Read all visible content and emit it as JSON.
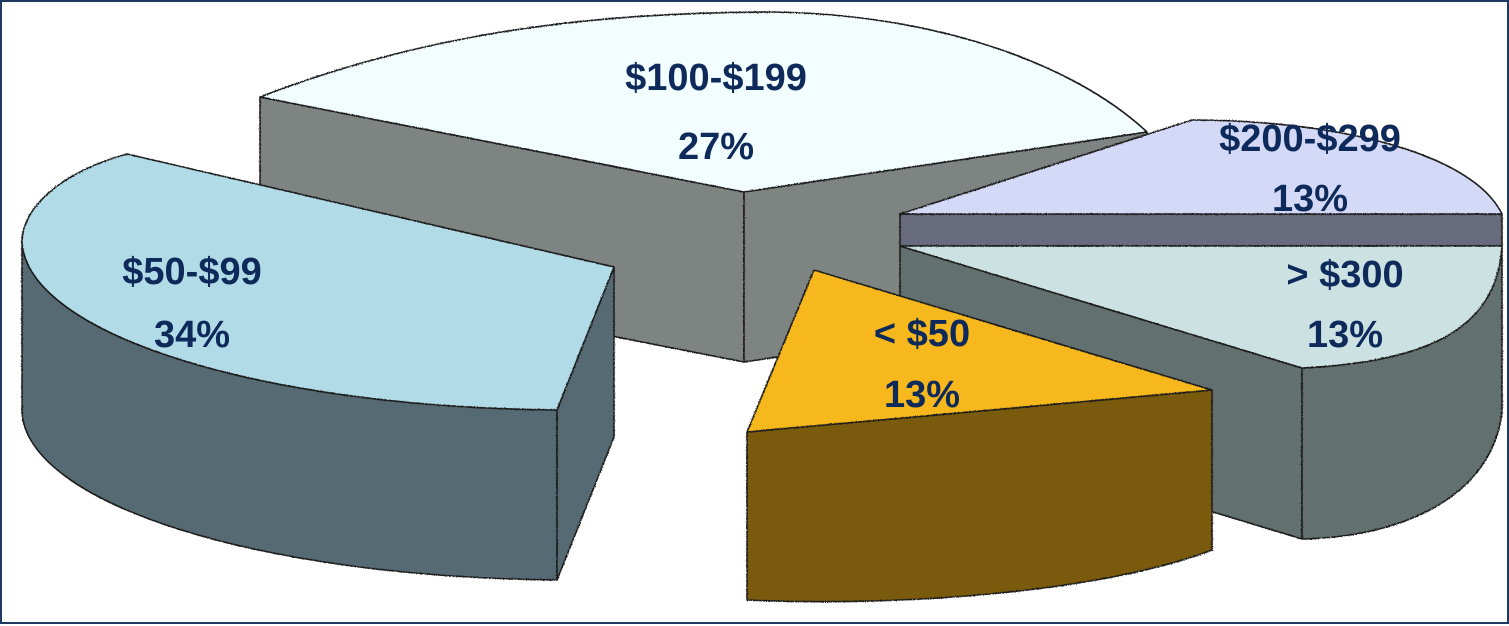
{
  "chart_data": {
    "type": "pie",
    "three_d": true,
    "exploded": true,
    "slices": [
      {
        "label": "$100-$199",
        "percent": "27%",
        "value": 27,
        "top_color": "#f2fdff",
        "side_color": "#7d8482"
      },
      {
        "label": "$200-$299",
        "percent": "13%",
        "value": 13,
        "top_color": "#d4d9f7",
        "side_color": "#676a7d"
      },
      {
        "label": "> $300",
        "percent": "13%",
        "value": 13,
        "top_color": "#cce2e2",
        "side_color": "#627070"
      },
      {
        "label": "< $50",
        "percent": "13%",
        "value": 13,
        "top_color": "#f6b81a",
        "side_color": "#7a5a0c"
      },
      {
        "label": "$50-$99",
        "percent": "34%",
        "value": 34,
        "top_color": "#b2dbe8",
        "side_color": "#576a73"
      }
    ],
    "legend": "none",
    "title": ""
  }
}
